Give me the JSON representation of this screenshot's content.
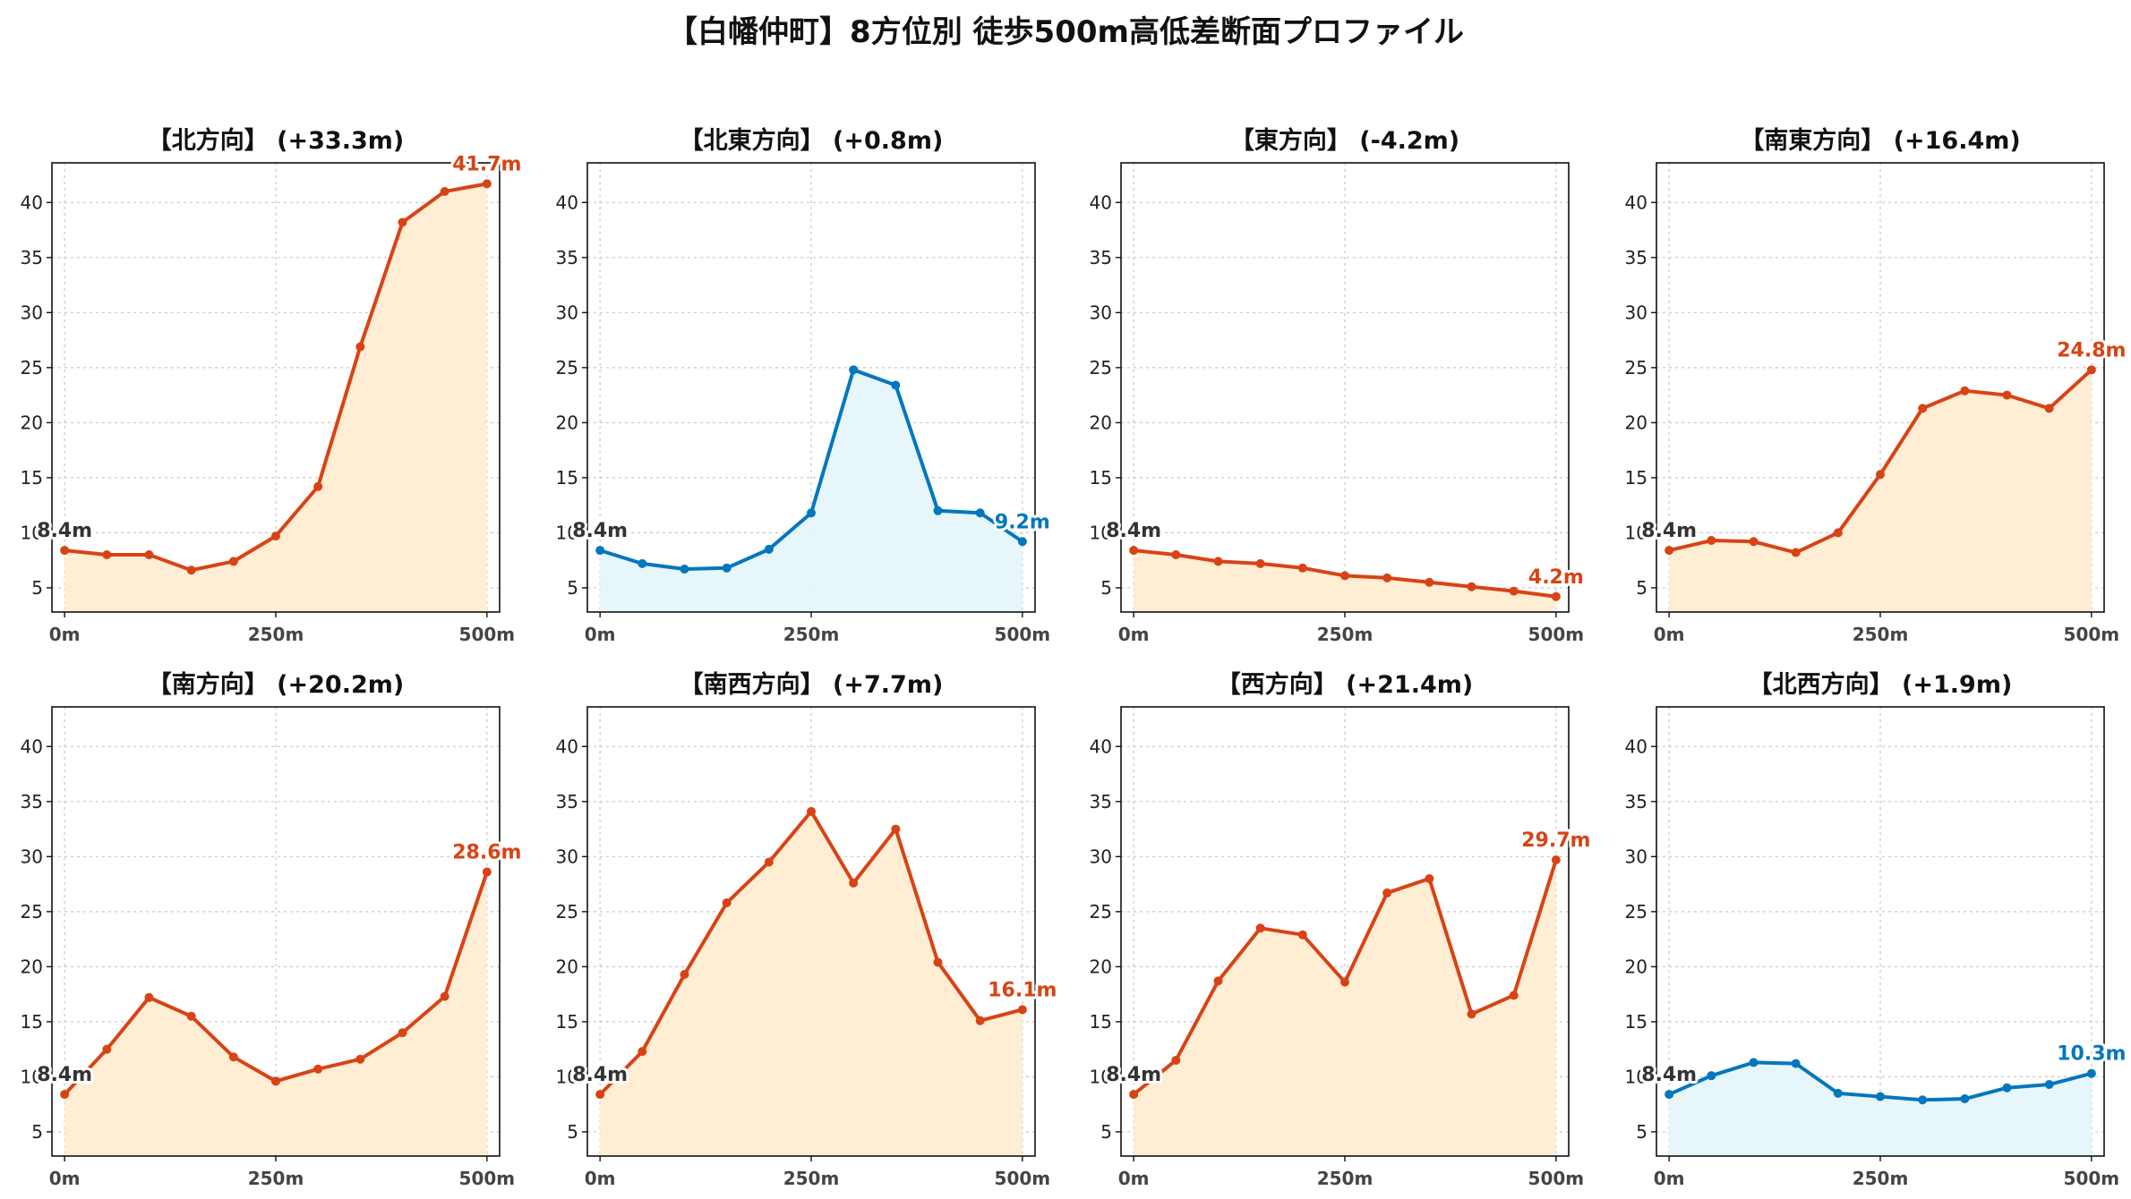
{
  "figure": {
    "title": "【白幡仲町】8方位別 徒歩500m高低差断面プロファイル"
  },
  "colors": {
    "up_line": "#d84315",
    "up_fill": "#ffecd2",
    "flat_line": "#0277bd",
    "flat_fill": "#e6f5fb",
    "start_label": "#333333",
    "grid": "#c8c8c8"
  },
  "chart_data": [
    {
      "type": "line",
      "title": "【北方向】 (+33.3m)",
      "color": "up",
      "x": [
        0,
        50,
        100,
        150,
        200,
        250,
        300,
        350,
        400,
        450,
        500
      ],
      "values": [
        8.4,
        8.0,
        8.0,
        6.6,
        7.4,
        9.7,
        14.2,
        26.9,
        38.2,
        41.0,
        41.7
      ],
      "xticks": [
        "0m",
        "250m",
        "500m"
      ],
      "yticks": [
        "5",
        "10",
        "15",
        "20",
        "25",
        "30",
        "35",
        "40"
      ],
      "ylim": [
        2.8,
        43.6
      ],
      "xlim": [
        -15,
        515
      ],
      "grid": true,
      "start_label": "8.4m",
      "end_label": "41.7m"
    },
    {
      "type": "line",
      "title": "【北東方向】 (+0.8m)",
      "color": "flat",
      "x": [
        0,
        50,
        100,
        150,
        200,
        250,
        300,
        350,
        400,
        450,
        500
      ],
      "values": [
        8.4,
        7.2,
        6.7,
        6.8,
        8.5,
        11.8,
        24.8,
        23.4,
        12.0,
        11.8,
        9.2
      ],
      "xticks": [
        "0m",
        "250m",
        "500m"
      ],
      "yticks": [
        "5",
        "10",
        "15",
        "20",
        "25",
        "30",
        "35",
        "40"
      ],
      "ylim": [
        2.8,
        43.6
      ],
      "xlim": [
        -15,
        515
      ],
      "grid": true,
      "start_label": "8.4m",
      "end_label": "9.2m"
    },
    {
      "type": "line",
      "title": "【東方向】 (-4.2m)",
      "color": "up",
      "x": [
        0,
        50,
        100,
        150,
        200,
        250,
        300,
        350,
        400,
        450,
        500
      ],
      "values": [
        8.4,
        8.0,
        7.4,
        7.2,
        6.8,
        6.1,
        5.9,
        5.5,
        5.1,
        4.7,
        4.2
      ],
      "xticks": [
        "0m",
        "250m",
        "500m"
      ],
      "yticks": [
        "5",
        "10",
        "15",
        "20",
        "25",
        "30",
        "35",
        "40"
      ],
      "ylim": [
        2.8,
        43.6
      ],
      "xlim": [
        -15,
        515
      ],
      "grid": true,
      "start_label": "8.4m",
      "end_label": "4.2m"
    },
    {
      "type": "line",
      "title": "【南東方向】 (+16.4m)",
      "color": "up",
      "x": [
        0,
        50,
        100,
        150,
        200,
        250,
        300,
        350,
        400,
        450,
        500
      ],
      "values": [
        8.4,
        9.3,
        9.2,
        8.2,
        10.0,
        15.3,
        21.3,
        22.9,
        22.5,
        21.3,
        24.8
      ],
      "xticks": [
        "0m",
        "250m",
        "500m"
      ],
      "yticks": [
        "5",
        "10",
        "15",
        "20",
        "25",
        "30",
        "35",
        "40"
      ],
      "ylim": [
        2.8,
        43.6
      ],
      "xlim": [
        -15,
        515
      ],
      "grid": true,
      "start_label": "8.4m",
      "end_label": "24.8m"
    },
    {
      "type": "line",
      "title": "【南方向】 (+20.2m)",
      "color": "up",
      "x": [
        0,
        50,
        100,
        150,
        200,
        250,
        300,
        350,
        400,
        450,
        500
      ],
      "values": [
        8.4,
        12.5,
        17.2,
        15.5,
        11.8,
        9.6,
        10.7,
        11.6,
        14.0,
        17.3,
        28.6
      ],
      "xticks": [
        "0m",
        "250m",
        "500m"
      ],
      "yticks": [
        "5",
        "10",
        "15",
        "20",
        "25",
        "30",
        "35",
        "40"
      ],
      "ylim": [
        2.8,
        43.6
      ],
      "xlim": [
        -15,
        515
      ],
      "grid": true,
      "start_label": "8.4m",
      "end_label": "28.6m"
    },
    {
      "type": "line",
      "title": "【南西方向】 (+7.7m)",
      "color": "up",
      "x": [
        0,
        50,
        100,
        150,
        200,
        250,
        300,
        350,
        400,
        450,
        500
      ],
      "values": [
        8.4,
        12.3,
        19.3,
        25.8,
        29.5,
        34.1,
        27.6,
        32.5,
        20.4,
        15.1,
        16.1
      ],
      "xticks": [
        "0m",
        "250m",
        "500m"
      ],
      "yticks": [
        "5",
        "10",
        "15",
        "20",
        "25",
        "30",
        "35",
        "40"
      ],
      "ylim": [
        2.8,
        43.6
      ],
      "xlim": [
        -15,
        515
      ],
      "grid": true,
      "start_label": "8.4m",
      "end_label": "16.1m"
    },
    {
      "type": "line",
      "title": "【西方向】 (+21.4m)",
      "color": "up",
      "x": [
        0,
        50,
        100,
        150,
        200,
        250,
        300,
        350,
        400,
        450,
        500
      ],
      "values": [
        8.4,
        11.5,
        18.7,
        23.5,
        22.9,
        18.6,
        26.7,
        28.0,
        15.7,
        17.4,
        29.7
      ],
      "xticks": [
        "0m",
        "250m",
        "500m"
      ],
      "yticks": [
        "5",
        "10",
        "15",
        "20",
        "25",
        "30",
        "35",
        "40"
      ],
      "ylim": [
        2.8,
        43.6
      ],
      "xlim": [
        -15,
        515
      ],
      "grid": true,
      "start_label": "8.4m",
      "end_label": "29.7m"
    },
    {
      "type": "line",
      "title": "【北西方向】 (+1.9m)",
      "color": "flat",
      "x": [
        0,
        50,
        100,
        150,
        200,
        250,
        300,
        350,
        400,
        450,
        500
      ],
      "values": [
        8.4,
        10.1,
        11.3,
        11.2,
        8.5,
        8.2,
        7.9,
        8.0,
        9.0,
        9.3,
        10.3
      ],
      "xticks": [
        "0m",
        "250m",
        "500m"
      ],
      "yticks": [
        "5",
        "10",
        "15",
        "20",
        "25",
        "30",
        "35",
        "40"
      ],
      "ylim": [
        2.8,
        43.6
      ],
      "xlim": [
        -15,
        515
      ],
      "grid": true,
      "start_label": "8.4m",
      "end_label": "10.3m"
    }
  ]
}
